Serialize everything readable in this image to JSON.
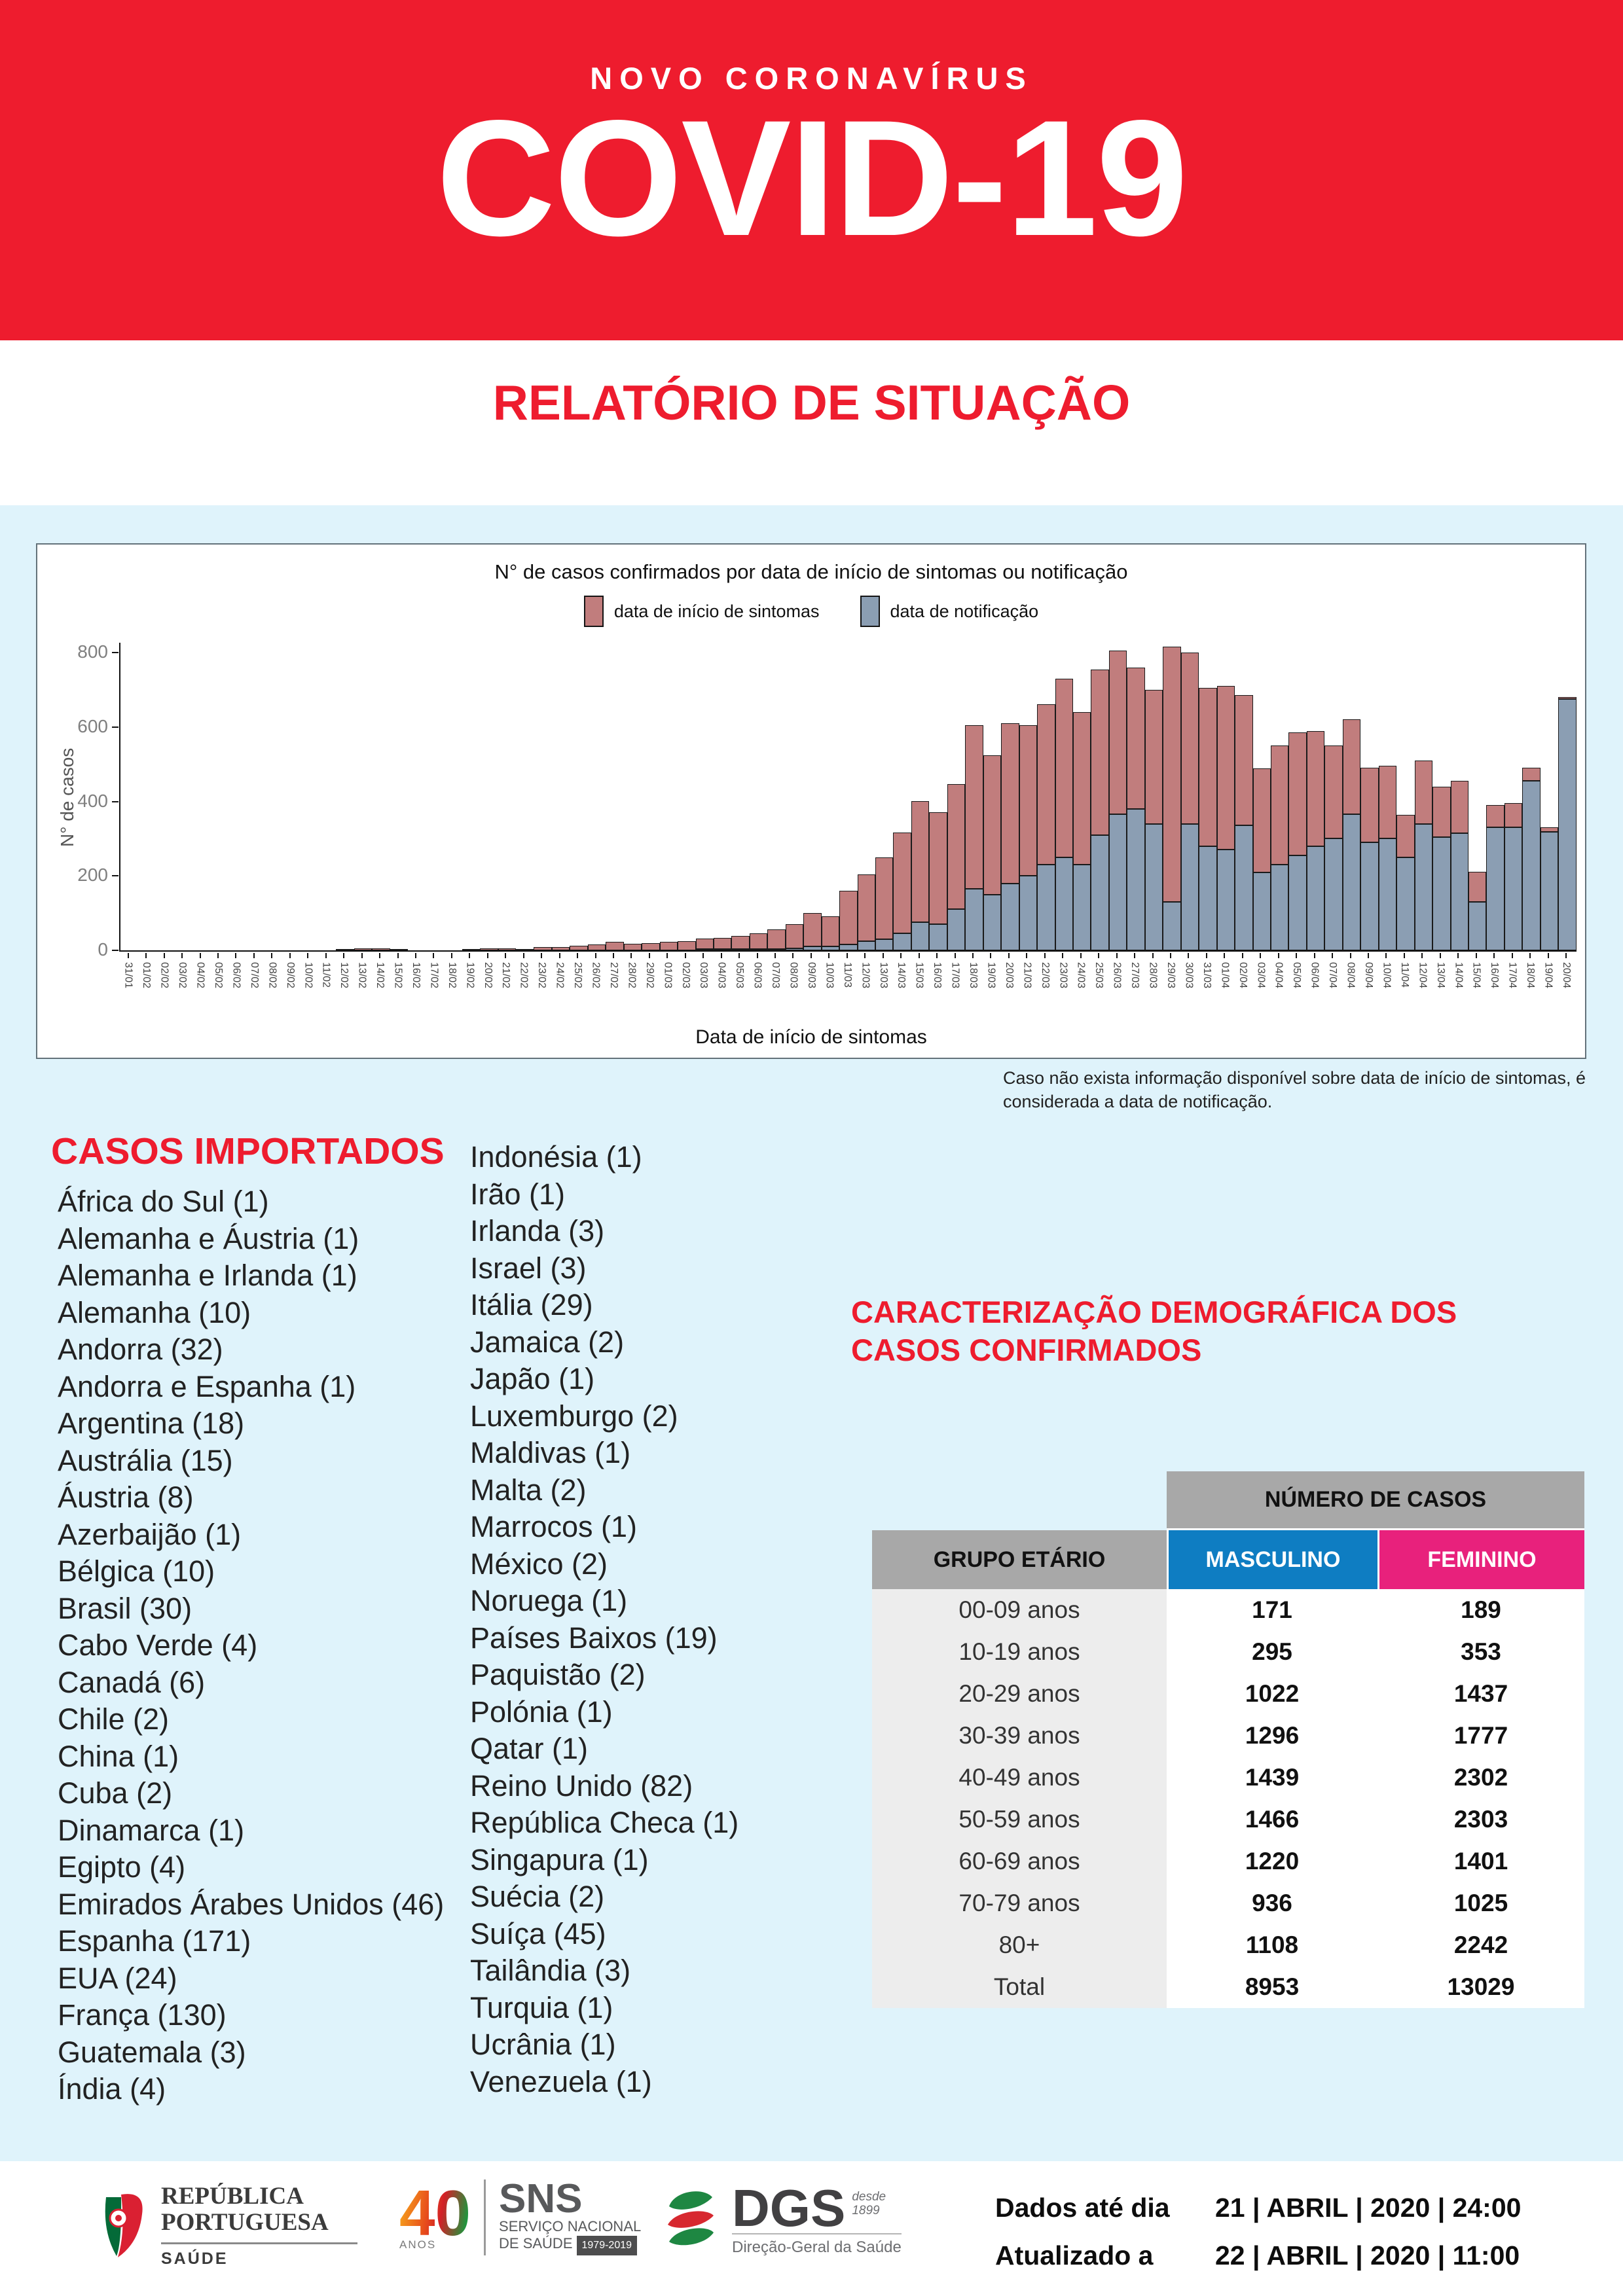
{
  "colors": {
    "brand_red": "#EE1C2E",
    "page_blue": "#DFF3FB",
    "bar_red": "#C17D7D",
    "bar_blue": "#8B9EB3",
    "table_gray": "#A8A8A8",
    "row_gray": "#EDEDED",
    "male_blue": "#0E7DC2",
    "female_pink": "#E8217C"
  },
  "header": {
    "kicker": "NOVO CORONAVÍRUS",
    "title": "COVID-19",
    "subtitle": "RELATÓRIO DE SITUAÇÃO"
  },
  "chart_section": {
    "title": "N° de casos confirmados por data de início de sintomas ou notificação",
    "ylabel": "N° de casos",
    "xlabel": "Data de início de sintomas",
    "note": "Caso não exista informação disponível sobre data de início de sintomas, é considerada a data de notificação."
  },
  "chart_data": {
    "type": "bar",
    "stacked": true,
    "title": "N° de casos confirmados por data de início de sintomas ou notificação",
    "xlabel": "Data de início de sintomas",
    "ylabel": "N° de casos",
    "ylim": [
      0,
      800
    ],
    "yticks": [
      0,
      200,
      400,
      600,
      800
    ],
    "legend_position": "top",
    "grid": false,
    "categories": [
      "31/01",
      "01/02",
      "02/02",
      "03/02",
      "04/02",
      "05/02",
      "06/02",
      "07/02",
      "08/02",
      "09/02",
      "10/02",
      "11/02",
      "12/02",
      "13/02",
      "14/02",
      "15/02",
      "16/02",
      "17/02",
      "18/02",
      "19/02",
      "20/02",
      "21/02",
      "22/02",
      "23/02",
      "24/02",
      "25/02",
      "26/02",
      "27/02",
      "28/02",
      "29/02",
      "01/03",
      "02/03",
      "03/03",
      "04/03",
      "05/03",
      "06/03",
      "07/03",
      "08/03",
      "09/03",
      "10/03",
      "11/03",
      "12/03",
      "13/03",
      "14/03",
      "15/03",
      "16/03",
      "17/03",
      "18/03",
      "19/03",
      "20/03",
      "21/03",
      "22/03",
      "23/03",
      "24/03",
      "25/03",
      "26/03",
      "27/03",
      "28/03",
      "29/03",
      "30/03",
      "31/03",
      "01/04",
      "02/04",
      "03/04",
      "04/04",
      "05/04",
      "06/04",
      "07/04",
      "08/04",
      "09/04",
      "10/04",
      "11/04",
      "12/04",
      "13/04",
      "14/04",
      "15/04",
      "16/04",
      "17/04",
      "18/04",
      "19/04",
      "20/04"
    ],
    "series": [
      {
        "name": "data de início de sintomas",
        "color": "#C17D7D",
        "values": [
          0,
          0,
          0,
          0,
          0,
          0,
          0,
          0,
          0,
          0,
          0,
          0,
          2,
          5,
          6,
          3,
          0,
          0,
          0,
          4,
          5,
          5,
          3,
          8,
          8,
          12,
          16,
          22,
          18,
          20,
          22,
          25,
          28,
          30,
          35,
          42,
          52,
          65,
          90,
          80,
          145,
          180,
          220,
          270,
          325,
          300,
          335,
          440,
          375,
          430,
          405,
          430,
          480,
          410,
          445,
          440,
          380,
          360,
          685,
          460,
          425,
          440,
          350,
          280,
          320,
          330,
          310,
          250,
          255,
          200,
          195,
          115,
          170,
          135,
          140,
          80,
          60,
          65,
          35,
          12,
          5
        ]
      },
      {
        "name": "data de notificação",
        "color": "#8B9EB3",
        "values": [
          0,
          0,
          0,
          0,
          0,
          0,
          0,
          0,
          0,
          0,
          0,
          0,
          0,
          0,
          0,
          0,
          0,
          0,
          0,
          0,
          0,
          0,
          0,
          0,
          0,
          0,
          0,
          0,
          0,
          0,
          0,
          0,
          2,
          2,
          3,
          3,
          3,
          5,
          10,
          10,
          15,
          25,
          30,
          45,
          75,
          70,
          110,
          165,
          150,
          180,
          200,
          230,
          250,
          230,
          310,
          365,
          380,
          340,
          130,
          340,
          280,
          270,
          335,
          210,
          230,
          255,
          280,
          300,
          365,
          290,
          300,
          250,
          340,
          305,
          315,
          130,
          330,
          330,
          455,
          318,
          675
        ]
      }
    ]
  },
  "imported_cases": {
    "heading": "CASOS IMPORTADOS",
    "column1": [
      "África do Sul (1)",
      "Alemanha e Áustria (1)",
      "Alemanha e Irlanda (1)",
      "Alemanha (10)",
      "Andorra (32)",
      "Andorra e Espanha (1)",
      "Argentina (18)",
      "Austrália (15)",
      "Áustria (8)",
      "Azerbaijão (1)",
      "Bélgica (10)",
      "Brasil (30)",
      "Cabo Verde (4)",
      "Canadá (6)",
      "Chile (2)",
      "China (1)",
      "Cuba (2)",
      "Dinamarca (1)",
      "Egipto (4)",
      "Emirados Árabes Unidos (46)",
      "Espanha (171)",
      "EUA (24)",
      "França (130)",
      "Guatemala (3)",
      "Índia (4)"
    ],
    "column2": [
      "Indonésia (1)",
      "Irão (1)",
      "Irlanda (3)",
      "Israel (3)",
      "Itália (29)",
      "Jamaica (2)",
      "Japão (1)",
      "Luxemburgo (2)",
      "Maldivas (1)",
      "Malta (2)",
      "Marrocos (1)",
      "México (2)",
      "Noruega (1)",
      "Países Baixos (19)",
      "Paquistão (2)",
      "Polónia (1)",
      "Qatar (1)",
      "Reino Unido (82)",
      "República Checa (1)",
      "Singapura (1)",
      "Suécia (2)",
      "Suíça (45)",
      "Tailândia (3)",
      "Turquia (1)",
      "Ucrânia (1)",
      "Venezuela (1)"
    ]
  },
  "demographics": {
    "heading_line1": "CARACTERIZAÇÃO DEMOGRÁFICA DOS",
    "heading_line2": "CASOS CONFIRMADOS",
    "table": {
      "col_group_header": "NÚMERO DE CASOS",
      "col1": "GRUPO ETÁRIO",
      "col2": "MASCULINO",
      "col3": "FEMININO",
      "rows": [
        [
          "00-09 anos",
          "171",
          "189"
        ],
        [
          "10-19 anos",
          "295",
          "353"
        ],
        [
          "20-29 anos",
          "1022",
          "1437"
        ],
        [
          "30-39 anos",
          "1296",
          "1777"
        ],
        [
          "40-49 anos",
          "1439",
          "2302"
        ],
        [
          "50-59 anos",
          "1466",
          "2303"
        ],
        [
          "60-69 anos",
          "1220",
          "1401"
        ],
        [
          "70-79 anos",
          "936",
          "1025"
        ],
        [
          "80+",
          "1108",
          "2242"
        ],
        [
          "Total",
          "8953",
          "13029"
        ]
      ]
    }
  },
  "footer": {
    "logo_republica": {
      "line1": "REPÚBLICA",
      "line2": "PORTUGUESA",
      "sub": "SAÚDE"
    },
    "logo_sns": {
      "number": "40",
      "anos": "ANOS",
      "acronym": "SNS",
      "line1": "SERVIÇO NACIONAL",
      "line2": "DE SAÚDE",
      "badge": "1979-2019"
    },
    "logo_dgs": {
      "acronym": "DGS",
      "desde_line1": "desde",
      "desde_line2": "1899",
      "name": "Direção-Geral da Saúde"
    },
    "dados_label": "Dados até dia",
    "dados_value": "21 | ABRIL | 2020 | 24:00",
    "atualizado_label": "Atualizado a",
    "atualizado_value": "22 | ABRIL | 2020 | 11:00"
  }
}
